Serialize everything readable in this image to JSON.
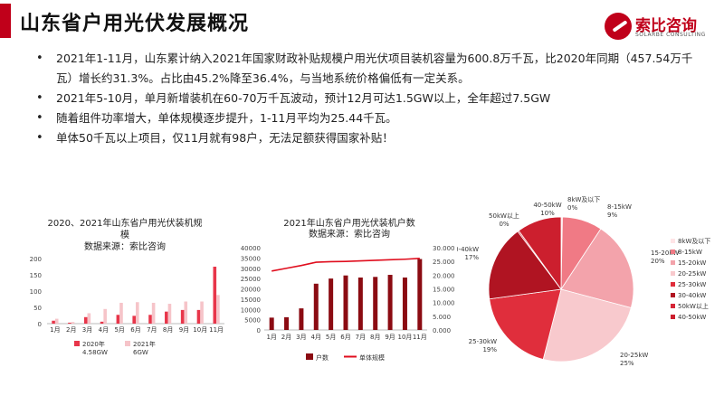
{
  "header": {
    "title": "山东省户用光伏发展概况"
  },
  "logo": {
    "name_cn": "索比咨询",
    "name_en": "SOLARBE CONSULTING",
    "icon": "solarbe-logo-icon"
  },
  "bullets": [
    "2021年1-11月，山东累计纳入2021年国家财政补贴规模户用光伏项目装机容量为600.8万千瓦，比2020年同期（457.54万千瓦）增长约31.3%。占比由45.2%降至36.4%，与当地系统价格偏低有一定关系。",
    "2021年5-10月，单月新增装机在60-70万千瓦波动，预计12月可达1.5GW以上，全年超过7.5GW",
    "随着组件功率增大，单体规模逐步提升，1-11月平均为25.44千瓦。",
    "单体50千瓦以上项目，仅11月就有98户，无法足额获得国家补贴！"
  ],
  "chart_data": [
    {
      "type": "bar",
      "title": "2020、2021年山东省户用光伏装机规模",
      "subtitle": "数据来源：索比咨询",
      "categories": [
        "1月",
        "2月",
        "3月",
        "4月",
        "5月",
        "6月",
        "7月",
        "8月",
        "9月",
        "10月",
        "11月"
      ],
      "series": [
        {
          "name": "2020年",
          "total_label": "4.58GW",
          "color": "#e8364a",
          "values": [
            9,
            3,
            20,
            6,
            27,
            24,
            27,
            37,
            42,
            42,
            175
          ]
        },
        {
          "name": "2021年",
          "total_label": "6GW",
          "color": "#f6c4c9",
          "values": [
            15,
            5,
            32,
            45,
            64,
            66,
            64,
            61,
            68,
            68,
            88
          ]
        }
      ],
      "yticks": [
        0,
        50,
        100,
        150,
        200
      ],
      "ylim": [
        0,
        200
      ],
      "grid": false,
      "legend": "bottom"
    },
    {
      "type": "bar+line",
      "title": "2021年山东省户用光伏装机户数",
      "subtitle": "数据来源：索比咨询",
      "categories": [
        "1月",
        "2月",
        "3月",
        "4月",
        "5月",
        "6月",
        "7月",
        "8月",
        "9月",
        "10月",
        "11月"
      ],
      "bars": {
        "name": "户数",
        "color": "#8b0b12",
        "values": [
          6000,
          6200,
          10500,
          22500,
          25000,
          26500,
          25500,
          25800,
          26800,
          25500,
          34500
        ]
      },
      "line": {
        "name": "单体规模",
        "color": "#e00e1e",
        "values": [
          21.5,
          22.5,
          23.5,
          24.7,
          24.9,
          25.0,
          25.2,
          25.4,
          25.6,
          25.8,
          26.1
        ]
      },
      "y_left": {
        "ticks": [
          "0",
          "5000",
          "10000",
          "15000",
          "20000",
          "25000",
          "30000",
          "35000",
          "40000"
        ],
        "lim": [
          0,
          40000
        ]
      },
      "y_right": {
        "ticks": [
          "0.000",
          "5.000",
          "10.000",
          "15.000",
          "20.000",
          "25.000",
          "30.000"
        ],
        "lim": [
          0,
          30
        ]
      },
      "grid": false,
      "legend": "bottom"
    },
    {
      "type": "pie",
      "slices": [
        {
          "name": "8kW及以下",
          "label": "8kW及以下",
          "pct_label": "0%",
          "value": 0.3,
          "color": "#ffe5e7"
        },
        {
          "name": "8-15kW",
          "label": "8-15kW",
          "pct_label": "9%",
          "value": 9,
          "color": "#f07a85"
        },
        {
          "name": "15-20kW",
          "label": "15-20kW",
          "pct_label": "20%",
          "value": 20,
          "color": "#f3a3ab"
        },
        {
          "name": "20-25kW",
          "label": "20-25kW",
          "pct_label": "25%",
          "value": 25,
          "color": "#f8c9cd"
        },
        {
          "name": "25-30kW",
          "label": "25-30kW",
          "pct_label": "19%",
          "value": 19,
          "color": "#e02e3c"
        },
        {
          "name": "30-40kW",
          "label": "30-40kW",
          "pct_label": "17%",
          "value": 17,
          "color": "#b01422"
        },
        {
          "name": "50kW以上",
          "label": "50kW以上",
          "pct_label": "0%",
          "value": 0.3,
          "color": "#d62637"
        },
        {
          "name": "40-50kW",
          "label": "40-50kW",
          "pct_label": "10%",
          "value": 10,
          "color": "#cc1f2e"
        }
      ],
      "legend": "right"
    }
  ]
}
